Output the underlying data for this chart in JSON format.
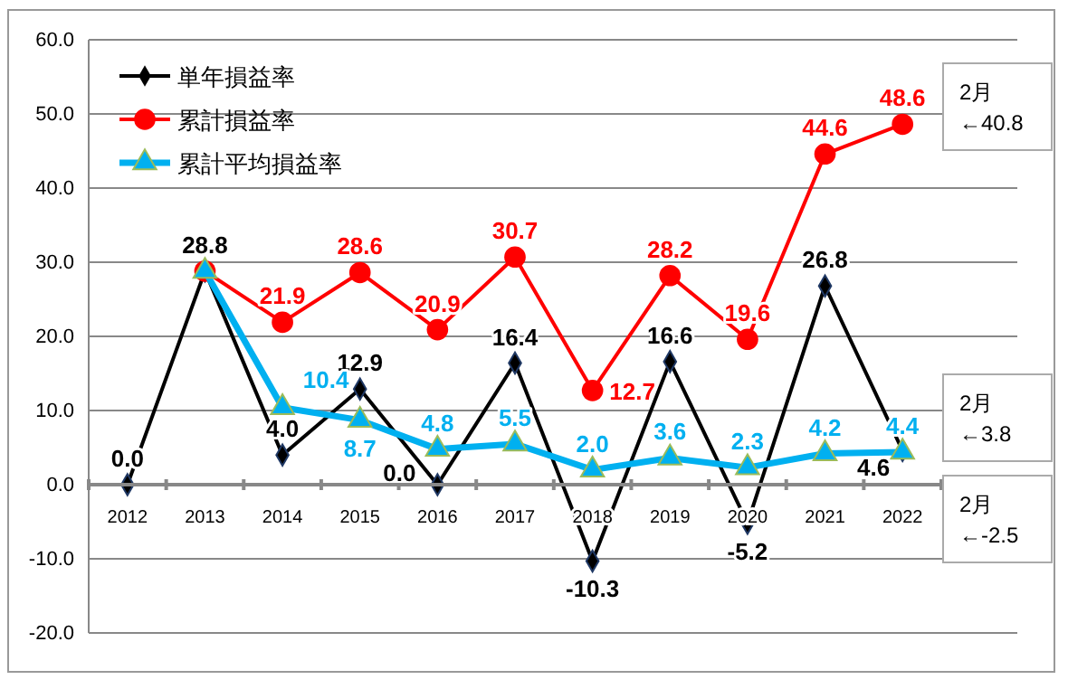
{
  "chart_data": {
    "type": "line",
    "categories": [
      "2012",
      "2013",
      "2014",
      "2015",
      "2016",
      "2017",
      "2018",
      "2019",
      "2020",
      "2021",
      "2022"
    ],
    "series": [
      {
        "name": "単年損益率",
        "color": "#000000",
        "marker": "diamond",
        "values": [
          0.0,
          28.8,
          4.0,
          12.9,
          0.0,
          16.4,
          -10.3,
          16.6,
          -5.2,
          26.8,
          4.6
        ],
        "value_labels": [
          "0.0",
          "28.8",
          "4.0",
          "12.9",
          "0.0",
          "16.4",
          "-10.3",
          "16.6",
          "-5.2",
          "26.8",
          "4.6"
        ]
      },
      {
        "name": "累計損益率",
        "color": "#ff0000",
        "marker": "circle",
        "values": [
          null,
          28.8,
          21.9,
          28.6,
          20.9,
          30.7,
          12.7,
          28.2,
          19.6,
          44.6,
          48.6
        ],
        "value_labels": [
          null,
          null,
          "21.9",
          "28.6",
          "20.9",
          "30.7",
          "12.7",
          "28.2",
          "19.6",
          "44.6",
          "48.6"
        ]
      },
      {
        "name": "累計平均損益率",
        "color": "#00b0f0",
        "marker": "triangle",
        "values": [
          null,
          28.8,
          10.4,
          8.7,
          4.8,
          5.5,
          2.0,
          3.6,
          2.3,
          4.2,
          4.4
        ],
        "value_labels": [
          null,
          null,
          "10.4",
          "8.7",
          "4.8",
          "5.5",
          "2.0",
          "3.6",
          "2.3",
          "4.2",
          "4.4"
        ]
      }
    ],
    "ylim": [
      -20,
      60
    ],
    "yticks": [
      {
        "value": -20,
        "label": "-20.0"
      },
      {
        "value": -10,
        "label": "-10.0"
      },
      {
        "value": 0,
        "label": "0.0"
      },
      {
        "value": 10,
        "label": "10.0"
      },
      {
        "value": 20,
        "label": "20.0"
      },
      {
        "value": 30,
        "label": "30.0"
      },
      {
        "value": 40,
        "label": "40.0"
      },
      {
        "value": 50,
        "label": "50.0"
      },
      {
        "value": 60,
        "label": "60.0"
      }
    ],
    "grid": "y",
    "legend": "top left",
    "annotations": [
      "2月\n←40.8",
      "2月\n←3.8",
      "2月\n←-2.5"
    ]
  }
}
